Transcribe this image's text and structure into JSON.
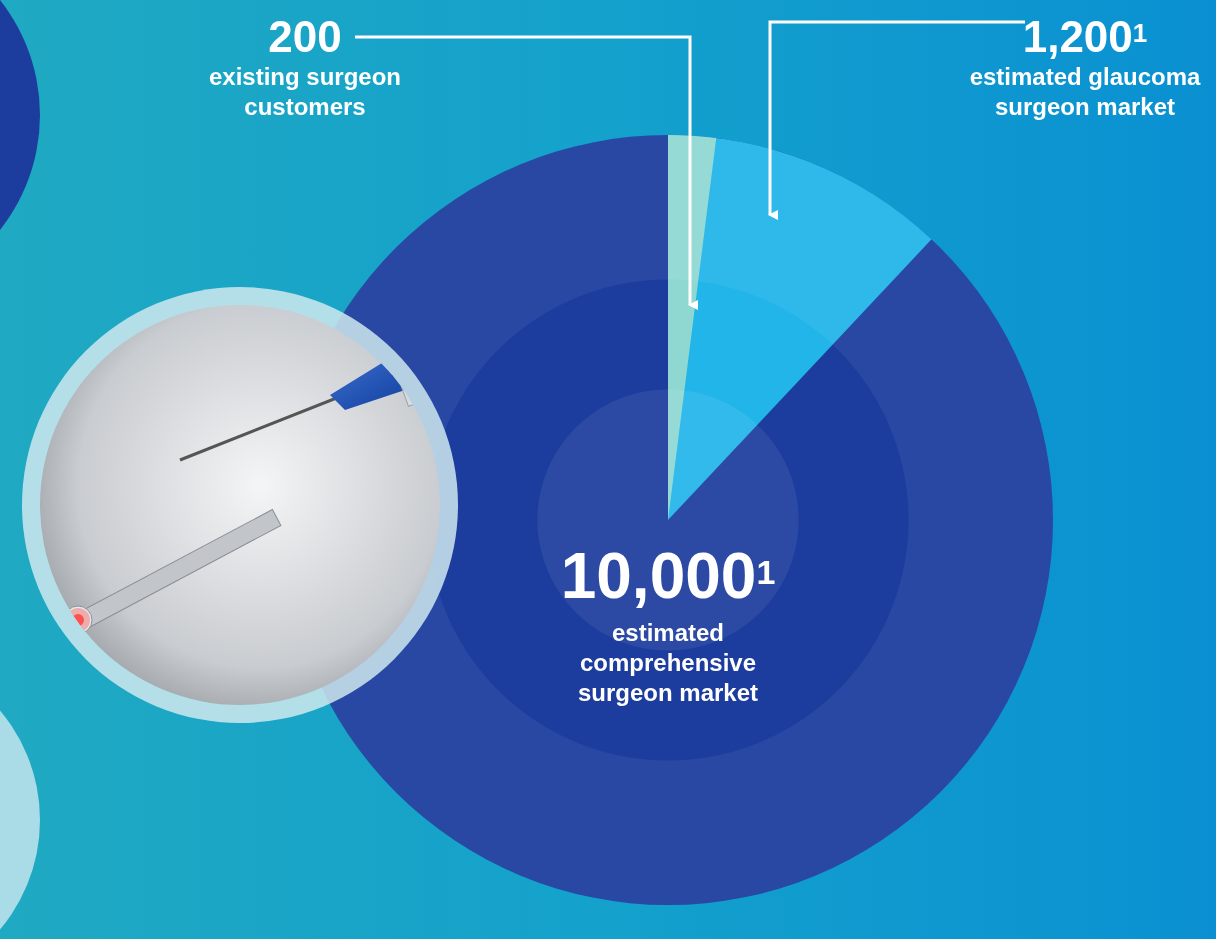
{
  "chart_data": {
    "type": "pie",
    "categories": [
      "existing surgeon customers",
      "estimated glaucoma surgeon market",
      "estimated comprehensive surgeon market"
    ],
    "values": [
      200,
      1200,
      10000
    ],
    "value_labels": [
      "200",
      "1,200",
      "10,000"
    ],
    "footnotes": [
      null,
      "1",
      "1"
    ],
    "colors": [
      "#8fd8d2",
      "#22b5ea",
      "#1c3d9e"
    ]
  }
}
